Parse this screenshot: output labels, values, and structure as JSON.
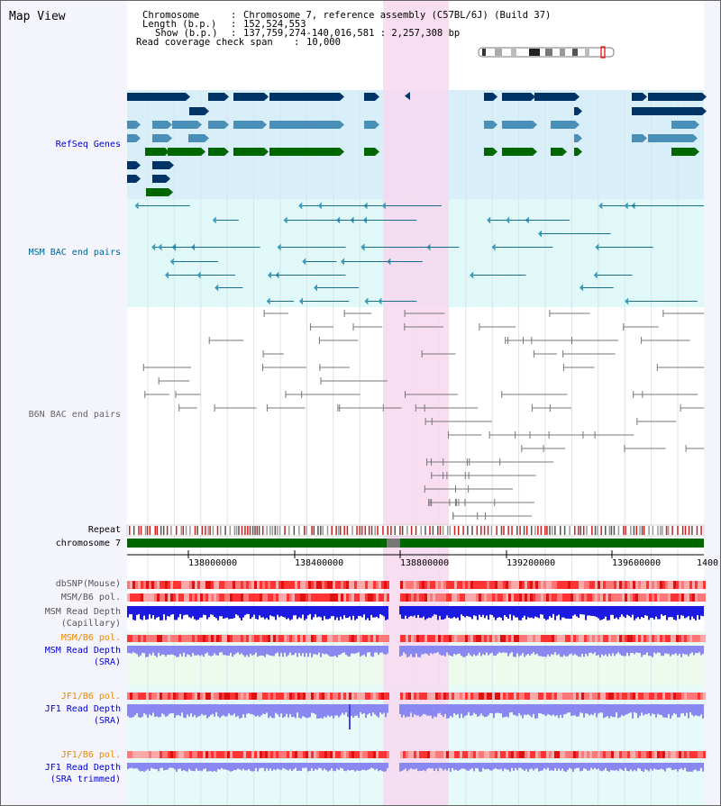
{
  "app": {
    "title": "Map View"
  },
  "header": {
    "chromosome_key": "Chromosome",
    "chromosome_value": "Chromosome 7, reference assembly (C57BL/6J) (Build 37)",
    "length_key": "Length (b.p.)",
    "length_value": "152,524,553",
    "show_key": "Show (b.p.)",
    "show_value": "137,759,274-140,016,581 : 2,257,308 bp",
    "coverage_key": "Read coverage check span",
    "coverage_value": "10,000"
  },
  "tracks": {
    "refseq": {
      "label": "RefSeq Genes",
      "color": "#0000cc"
    },
    "msm_bac": {
      "label": "MSM BAC end pairs",
      "color": "#006699"
    },
    "b6n_bac": {
      "label": "B6N BAC end pairs",
      "color": "#666666"
    },
    "repeat": {
      "label": "Repeat",
      "color": "#000000"
    },
    "chromosome": {
      "label": "chromosome 7",
      "color": "#000000"
    },
    "dbsnp": {
      "label": "dbSNP(Mouse)",
      "color": "#555555"
    },
    "msm_b6_pol_1": {
      "label": "MSM/B6 pol.",
      "color": "#555555"
    },
    "msm_depth_cap": {
      "label_line1": "MSM Read Depth",
      "label_line2": "(Capillary)",
      "color": "#555555"
    },
    "msm_b6_pol_2": {
      "label": "MSM/B6 pol.",
      "color": "#ee8800"
    },
    "msm_depth_sra": {
      "label_line1": "MSM Read Depth",
      "label_line2": "(SRA)",
      "color": "#0000cc"
    },
    "jf1_b6_pol_1": {
      "label": "JF1/B6 pol.",
      "color": "#ee8800"
    },
    "jf1_depth_sra": {
      "label_line1": "JF1 Read Depth",
      "label_line2": "(SRA)",
      "color": "#0000cc"
    },
    "jf1_b6_pol_2": {
      "label": "JF1/B6 pol.",
      "color": "#ee8800"
    },
    "jf1_depth_trim": {
      "label_line1": "JF1 Read Depth",
      "label_line2": "(SRA trimmed)",
      "color": "#0000cc"
    }
  },
  "axis": {
    "ticks": [
      "138000000",
      "138400000",
      "138800000",
      "139200000",
      "139600000",
      "1400"
    ]
  },
  "colors": {
    "highlight": "#f8d8f0",
    "refseq_bg": "#d8eef8",
    "msm_bg": "#e0f8f8",
    "chromosome_bar": "#006600",
    "gene_dark": "#003366",
    "gene_mid": "#4a8fb8",
    "gene_green": "#006600",
    "depth_blue": "#1a1ae0",
    "depth_lilac": "#8888f0"
  }
}
